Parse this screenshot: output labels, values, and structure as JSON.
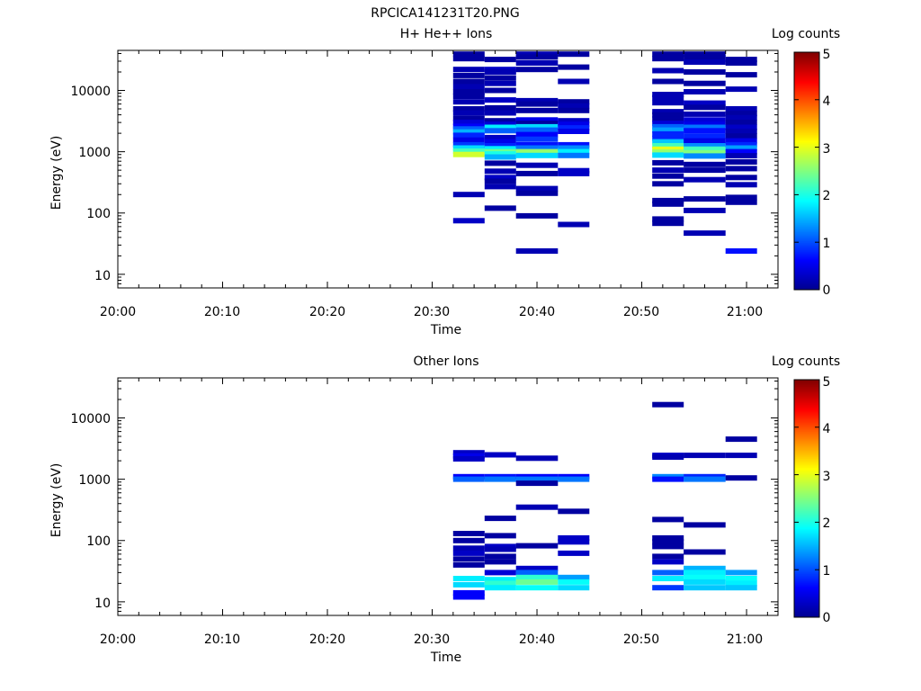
{
  "figure_title": "RPCICA141231T20.PNG",
  "colors": {
    "colormap": [
      "#00008f",
      "#0000ff",
      "#0080ff",
      "#00ffff",
      "#80ff80",
      "#ffff00",
      "#ff8000",
      "#ff0000",
      "#800000"
    ]
  },
  "chart_data": [
    {
      "type": "heatmap",
      "title": "H+ He++ Ions",
      "xlabel": "Time",
      "ylabel": "Energy (eV)",
      "y_scale": "log",
      "ylim": [
        6,
        45000
      ],
      "xlim": [
        "20:00",
        "21:03"
      ],
      "x_tick_labels": [
        "20:00",
        "20:10",
        "20:20",
        "20:30",
        "20:40",
        "20:50",
        "21:00"
      ],
      "y_tick_labels": [
        "10",
        "100",
        "1000",
        "10000"
      ],
      "colorbar": {
        "label": "Log counts",
        "range": [
          0,
          5
        ],
        "tick_labels": [
          "0",
          "1",
          "2",
          "3",
          "4",
          "5"
        ]
      },
      "time_bins": [
        [
          "20:32",
          "20:35"
        ],
        [
          "20:35",
          "20:38"
        ],
        [
          "20:38",
          "20:42"
        ],
        [
          "20:42",
          "20:45"
        ],
        [
          "20:51",
          "20:54"
        ],
        [
          "20:54",
          "20:58"
        ],
        [
          "20:58",
          "21:01"
        ]
      ],
      "cells": [
        [
          0,
          39000,
          0.1
        ],
        [
          0,
          33000,
          0.1
        ],
        [
          0,
          22000,
          0.2
        ],
        [
          0,
          17500,
          0.1
        ],
        [
          0,
          14000,
          0.1
        ],
        [
          0,
          11500,
          0.2
        ],
        [
          0,
          9500,
          0.1
        ],
        [
          0,
          8000,
          0.1
        ],
        [
          0,
          6500,
          0.2
        ],
        [
          0,
          5000,
          0.1
        ],
        [
          0,
          4300,
          0.2
        ],
        [
          0,
          3500,
          0.1
        ],
        [
          0,
          3000,
          0.4
        ],
        [
          0,
          2600,
          0.6
        ],
        [
          0,
          2350,
          1.1
        ],
        [
          0,
          2100,
          1.5
        ],
        [
          0,
          1850,
          0.8
        ],
        [
          0,
          1550,
          0.5
        ],
        [
          0,
          1300,
          0.9
        ],
        [
          0,
          1150,
          1.7
        ],
        [
          0,
          1020,
          2.2
        ],
        [
          0,
          900,
          2.9
        ],
        [
          0,
          200,
          0.2
        ],
        [
          0,
          75,
          0.3
        ],
        [
          1,
          32000,
          0.1
        ],
        [
          1,
          22000,
          0.3
        ],
        [
          1,
          20000,
          0.2
        ],
        [
          1,
          16000,
          0.1
        ],
        [
          1,
          13000,
          0.2
        ],
        [
          1,
          10000,
          0.1
        ],
        [
          1,
          7000,
          0.3
        ],
        [
          1,
          5200,
          0.1
        ],
        [
          1,
          4300,
          0.2
        ],
        [
          1,
          3200,
          0.1
        ],
        [
          1,
          2800,
          0.4
        ],
        [
          1,
          2500,
          1.8
        ],
        [
          1,
          2200,
          1.1
        ],
        [
          1,
          1700,
          0.3
        ],
        [
          1,
          1450,
          0.5
        ],
        [
          1,
          1250,
          0.8
        ],
        [
          1,
          1120,
          1.8
        ],
        [
          1,
          1000,
          2.4
        ],
        [
          1,
          920,
          2.0
        ],
        [
          1,
          820,
          1.5
        ],
        [
          1,
          650,
          0.1
        ],
        [
          1,
          480,
          0.2
        ],
        [
          1,
          380,
          0.3
        ],
        [
          1,
          330,
          0.1
        ],
        [
          1,
          270,
          0.2
        ],
        [
          1,
          120,
          0.1
        ],
        [
          2,
          39000,
          0.2
        ],
        [
          2,
          35000,
          0.1
        ],
        [
          2,
          28000,
          0.2
        ],
        [
          2,
          22000,
          0.1
        ],
        [
          2,
          6800,
          0.2
        ],
        [
          2,
          6000,
          0.1
        ],
        [
          2,
          4700,
          0.1
        ],
        [
          2,
          3300,
          0.5
        ],
        [
          2,
          2900,
          0.1
        ],
        [
          2,
          2550,
          1.7
        ],
        [
          2,
          2250,
          1.1
        ],
        [
          2,
          1900,
          0.6
        ],
        [
          2,
          1600,
          0.9
        ],
        [
          2,
          1300,
          0.7
        ],
        [
          2,
          1150,
          1.2
        ],
        [
          2,
          1000,
          2.6
        ],
        [
          2,
          870,
          1.7
        ],
        [
          2,
          600,
          0.2
        ],
        [
          2,
          440,
          0.1
        ],
        [
          2,
          250,
          0.2
        ],
        [
          2,
          210,
          0.1
        ],
        [
          2,
          90,
          0.1
        ],
        [
          2,
          24,
          0.2
        ],
        [
          3,
          39000,
          0.1
        ],
        [
          3,
          24000,
          0.1
        ],
        [
          3,
          14000,
          0.2
        ],
        [
          3,
          6500,
          0.1
        ],
        [
          3,
          5600,
          0.2
        ],
        [
          3,
          4700,
          0.1
        ],
        [
          3,
          3200,
          0.3
        ],
        [
          3,
          2800,
          0.5
        ],
        [
          3,
          2450,
          0.8
        ],
        [
          3,
          2150,
          0.5
        ],
        [
          3,
          1300,
          0.7
        ],
        [
          3,
          1150,
          1.3
        ],
        [
          3,
          1000,
          1.8
        ],
        [
          3,
          870,
          1.2
        ],
        [
          3,
          490,
          0.3
        ],
        [
          3,
          440,
          0.3
        ],
        [
          3,
          65,
          0.2
        ],
        [
          4,
          39000,
          0.1
        ],
        [
          4,
          33000,
          0.1
        ],
        [
          4,
          21000,
          0.2
        ],
        [
          4,
          14000,
          0.1
        ],
        [
          4,
          8600,
          0.2
        ],
        [
          4,
          7600,
          0.2
        ],
        [
          4,
          6300,
          0.2
        ],
        [
          4,
          4500,
          0.2
        ],
        [
          4,
          4000,
          0.1
        ],
        [
          4,
          3400,
          0.1
        ],
        [
          4,
          2900,
          0.4
        ],
        [
          4,
          2550,
          1.1
        ],
        [
          4,
          2250,
          1.4
        ],
        [
          4,
          1950,
          0.8
        ],
        [
          4,
          1650,
          0.8
        ],
        [
          4,
          1450,
          1.6
        ],
        [
          4,
          1250,
          2.2
        ],
        [
          4,
          1100,
          3.0
        ],
        [
          4,
          980,
          2.6
        ],
        [
          4,
          880,
          1.7
        ],
        [
          4,
          660,
          0.1
        ],
        [
          4,
          500,
          0.2
        ],
        [
          4,
          400,
          0.1
        ],
        [
          4,
          300,
          0.1
        ],
        [
          4,
          160,
          0.1
        ],
        [
          4,
          140,
          0.1
        ],
        [
          4,
          80,
          0.1
        ],
        [
          4,
          68,
          0.1
        ],
        [
          5,
          39000,
          0.1
        ],
        [
          5,
          34000,
          0.1
        ],
        [
          5,
          29000,
          0.2
        ],
        [
          5,
          20000,
          0.1
        ],
        [
          5,
          13000,
          0.1
        ],
        [
          5,
          9500,
          0.2
        ],
        [
          5,
          6200,
          0.3
        ],
        [
          5,
          5300,
          0.1
        ],
        [
          5,
          4100,
          0.2
        ],
        [
          5,
          3300,
          0.4
        ],
        [
          5,
          2800,
          0.5
        ],
        [
          5,
          2500,
          1.2
        ],
        [
          5,
          2200,
          0.7
        ],
        [
          5,
          1800,
          0.8
        ],
        [
          5,
          1500,
          0.5
        ],
        [
          5,
          1250,
          1.3
        ],
        [
          5,
          1100,
          2.2
        ],
        [
          5,
          960,
          2.5
        ],
        [
          5,
          850,
          1.3
        ],
        [
          5,
          620,
          0.1
        ],
        [
          5,
          500,
          0.1
        ],
        [
          5,
          350,
          0.2
        ],
        [
          5,
          170,
          0.1
        ],
        [
          5,
          110,
          0.2
        ],
        [
          5,
          47,
          0.2
        ],
        [
          6,
          32000,
          0.1
        ],
        [
          6,
          28000,
          0.1
        ],
        [
          6,
          18000,
          0.1
        ],
        [
          6,
          10500,
          0.2
        ],
        [
          6,
          5000,
          0.2
        ],
        [
          6,
          4200,
          0.1
        ],
        [
          6,
          3600,
          0.2
        ],
        [
          6,
          3000,
          0.1
        ],
        [
          6,
          2500,
          0.3
        ],
        [
          6,
          2150,
          0.2
        ],
        [
          6,
          1800,
          0.1
        ],
        [
          6,
          1500,
          0.5
        ],
        [
          6,
          1300,
          0.8
        ],
        [
          6,
          1150,
          1.4
        ],
        [
          6,
          1000,
          0.6
        ],
        [
          6,
          860,
          0.2
        ],
        [
          6,
          680,
          0.1
        ],
        [
          6,
          530,
          0.1
        ],
        [
          6,
          380,
          0.1
        ],
        [
          6,
          290,
          0.2
        ],
        [
          6,
          180,
          0.1
        ],
        [
          6,
          150,
          0.1
        ],
        [
          6,
          24,
          0.7
        ]
      ]
    },
    {
      "type": "heatmap",
      "title": "Other Ions",
      "xlabel": "Time",
      "ylabel": "Energy (eV)",
      "y_scale": "log",
      "ylim": [
        6,
        45000
      ],
      "xlim": [
        "20:00",
        "21:03"
      ],
      "x_tick_labels": [
        "20:00",
        "20:10",
        "20:20",
        "20:30",
        "20:40",
        "20:50",
        "21:00"
      ],
      "y_tick_labels": [
        "10",
        "100",
        "1000",
        "10000"
      ],
      "colorbar": {
        "label": "Log counts",
        "range": [
          0,
          5
        ],
        "tick_labels": [
          "0",
          "1",
          "2",
          "3",
          "4",
          "5"
        ]
      },
      "time_bins": [
        [
          "20:32",
          "20:35"
        ],
        [
          "20:35",
          "20:38"
        ],
        [
          "20:38",
          "20:42"
        ],
        [
          "20:42",
          "20:45"
        ],
        [
          "20:51",
          "20:54"
        ],
        [
          "20:54",
          "20:58"
        ],
        [
          "20:58",
          "21:01"
        ]
      ],
      "cells": [
        [
          0,
          2700,
          0.3
        ],
        [
          0,
          2400,
          0.5
        ],
        [
          0,
          2150,
          0.3
        ],
        [
          0,
          1100,
          0.6
        ],
        [
          0,
          1000,
          1.1
        ],
        [
          0,
          130,
          0.1
        ],
        [
          0,
          100,
          0.1
        ],
        [
          0,
          75,
          0.2
        ],
        [
          0,
          62,
          0.3
        ],
        [
          0,
          50,
          0.1
        ],
        [
          0,
          40,
          0.1
        ],
        [
          0,
          24,
          1.8
        ],
        [
          0,
          19,
          1.7
        ],
        [
          0,
          14,
          0.6
        ],
        [
          0,
          12,
          0.6
        ],
        [
          1,
          2500,
          0.3
        ],
        [
          1,
          1100,
          0.7
        ],
        [
          1,
          1000,
          1.2
        ],
        [
          1,
          230,
          0.1
        ],
        [
          1,
          120,
          0.1
        ],
        [
          1,
          80,
          0.3
        ],
        [
          1,
          72,
          0.2
        ],
        [
          1,
          55,
          0.1
        ],
        [
          1,
          45,
          0.1
        ],
        [
          1,
          30,
          0.4
        ],
        [
          1,
          23,
          1.8
        ],
        [
          1,
          20,
          2.1
        ],
        [
          1,
          17,
          1.8
        ],
        [
          2,
          2200,
          0.2
        ],
        [
          2,
          1100,
          0.6
        ],
        [
          2,
          1000,
          1.2
        ],
        [
          2,
          860,
          0.1
        ],
        [
          2,
          350,
          0.2
        ],
        [
          2,
          82,
          0.1
        ],
        [
          2,
          35,
          0.3
        ],
        [
          2,
          30,
          1.1
        ],
        [
          2,
          25,
          2.1
        ],
        [
          2,
          21,
          2.4
        ],
        [
          2,
          17,
          1.9
        ],
        [
          3,
          1100,
          0.6
        ],
        [
          3,
          1000,
          1.2
        ],
        [
          3,
          300,
          0.1
        ],
        [
          3,
          110,
          0.3
        ],
        [
          3,
          95,
          0.3
        ],
        [
          3,
          62,
          0.3
        ],
        [
          3,
          25,
          1.4
        ],
        [
          3,
          21,
          1.9
        ],
        [
          3,
          17,
          1.7
        ],
        [
          4,
          16500,
          0.1
        ],
        [
          4,
          2450,
          0.3
        ],
        [
          4,
          2300,
          0.2
        ],
        [
          4,
          1100,
          1.3
        ],
        [
          4,
          1000,
          0.7
        ],
        [
          4,
          220,
          0.1
        ],
        [
          4,
          110,
          0.1
        ],
        [
          4,
          95,
          0.1
        ],
        [
          4,
          80,
          0.1
        ],
        [
          4,
          55,
          0.1
        ],
        [
          4,
          45,
          0.3
        ],
        [
          4,
          30,
          1.1
        ],
        [
          4,
          24,
          1.8
        ],
        [
          4,
          17,
          0.9
        ],
        [
          5,
          2450,
          0.2
        ],
        [
          5,
          1100,
          0.8
        ],
        [
          5,
          1000,
          1.2
        ],
        [
          5,
          180,
          0.1
        ],
        [
          5,
          65,
          0.1
        ],
        [
          5,
          35,
          1.5
        ],
        [
          5,
          30,
          1.8
        ],
        [
          5,
          25,
          1.9
        ],
        [
          5,
          21,
          1.7
        ],
        [
          5,
          17,
          1.6
        ],
        [
          6,
          4500,
          0.1
        ],
        [
          6,
          2450,
          0.2
        ],
        [
          6,
          1050,
          0.1
        ],
        [
          6,
          30,
          1.4
        ],
        [
          6,
          24,
          1.9
        ],
        [
          6,
          20,
          1.8
        ],
        [
          6,
          17,
          1.6
        ]
      ]
    }
  ]
}
